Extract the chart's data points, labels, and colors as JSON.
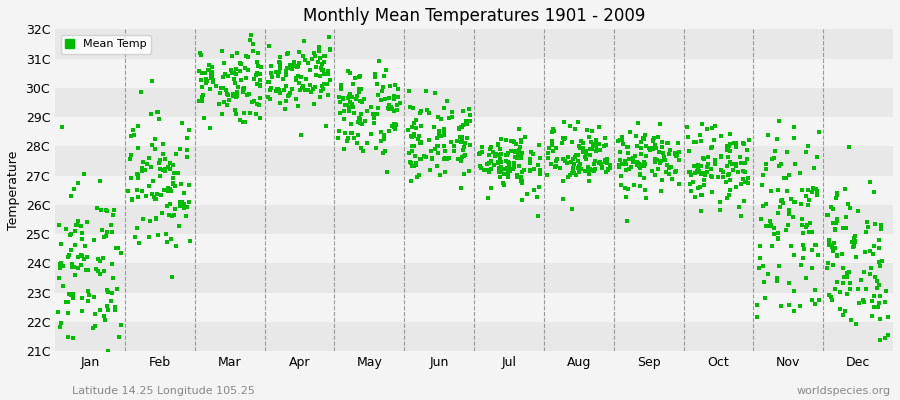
{
  "title": "Monthly Mean Temperatures 1901 - 2009",
  "ylabel": "Temperature",
  "bottom_left": "Latitude 14.25 Longitude 105.25",
  "bottom_right": "worldspecies.org",
  "legend_label": "Mean Temp",
  "marker_color": "#00bb00",
  "ylim": [
    21,
    32
  ],
  "yticks": [
    21,
    22,
    23,
    24,
    25,
    26,
    27,
    28,
    29,
    30,
    31,
    32
  ],
  "ytick_labels": [
    "21C",
    "22C",
    "23C",
    "24C",
    "25C",
    "26C",
    "27C",
    "28C",
    "29C",
    "30C",
    "31C",
    "32C"
  ],
  "month_names": [
    "Jan",
    "Feb",
    "Mar",
    "Apr",
    "May",
    "Jun",
    "Jul",
    "Aug",
    "Sep",
    "Oct",
    "Nov",
    "Dec"
  ],
  "monthly_means": [
    23.8,
    26.8,
    30.2,
    30.5,
    29.2,
    28.2,
    27.5,
    27.6,
    27.5,
    27.3,
    25.5,
    24.0
  ],
  "monthly_stds": [
    1.5,
    1.2,
    0.7,
    0.6,
    0.8,
    0.7,
    0.55,
    0.55,
    0.55,
    0.65,
    1.5,
    1.4
  ],
  "stripe_light": "#f4f4f4",
  "stripe_dark": "#e8e8e8",
  "bg_color": "#f4f4f4",
  "vline_color": "#999999",
  "bottom_text_color": "#888888"
}
